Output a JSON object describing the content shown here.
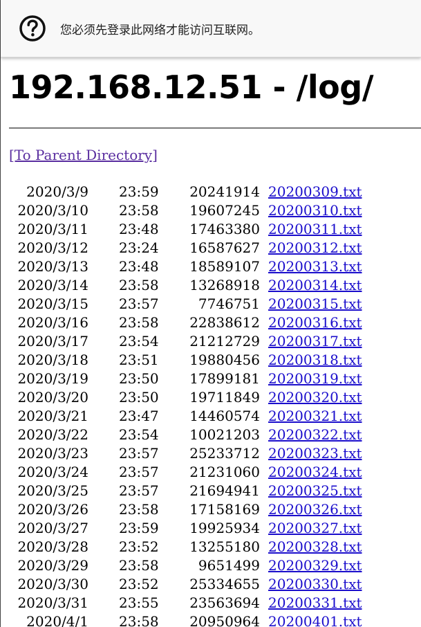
{
  "banner": {
    "message": "您必须先登录此网络才能访问互联网。"
  },
  "page": {
    "title": "192.168.12.51 - /log/",
    "parent_link": "[To Parent Directory]"
  },
  "files": [
    {
      "date": "2020/3/9",
      "time": "23:59",
      "size": "20241914",
      "name": "20200309.txt"
    },
    {
      "date": "2020/3/10",
      "time": "23:58",
      "size": "19607245",
      "name": "20200310.txt"
    },
    {
      "date": "2020/3/11",
      "time": "23:48",
      "size": "17463380",
      "name": "20200311.txt"
    },
    {
      "date": "2020/3/12",
      "time": "23:24",
      "size": "16587627",
      "name": "20200312.txt"
    },
    {
      "date": "2020/3/13",
      "time": "23:48",
      "size": "18589107",
      "name": "20200313.txt"
    },
    {
      "date": "2020/3/14",
      "time": "23:58",
      "size": "13268918",
      "name": "20200314.txt"
    },
    {
      "date": "2020/3/15",
      "time": "23:57",
      "size": "7746751",
      "name": "20200315.txt"
    },
    {
      "date": "2020/3/16",
      "time": "23:58",
      "size": "22838612",
      "name": "20200316.txt"
    },
    {
      "date": "2020/3/17",
      "time": "23:54",
      "size": "21212729",
      "name": "20200317.txt"
    },
    {
      "date": "2020/3/18",
      "time": "23:51",
      "size": "19880456",
      "name": "20200318.txt"
    },
    {
      "date": "2020/3/19",
      "time": "23:50",
      "size": "17899181",
      "name": "20200319.txt"
    },
    {
      "date": "2020/3/20",
      "time": "23:50",
      "size": "19711849",
      "name": "20200320.txt"
    },
    {
      "date": "2020/3/21",
      "time": "23:47",
      "size": "14460574",
      "name": "20200321.txt"
    },
    {
      "date": "2020/3/22",
      "time": "23:54",
      "size": "10021203",
      "name": "20200322.txt"
    },
    {
      "date": "2020/3/23",
      "time": "23:57",
      "size": "25233712",
      "name": "20200323.txt"
    },
    {
      "date": "2020/3/24",
      "time": "23:57",
      "size": "21231060",
      "name": "20200324.txt"
    },
    {
      "date": "2020/3/25",
      "time": "23:57",
      "size": "21694941",
      "name": "20200325.txt"
    },
    {
      "date": "2020/3/26",
      "time": "23:58",
      "size": "17158169",
      "name": "20200326.txt"
    },
    {
      "date": "2020/3/27",
      "time": "23:59",
      "size": "19925934",
      "name": "20200327.txt"
    },
    {
      "date": "2020/3/28",
      "time": "23:52",
      "size": "13255180",
      "name": "20200328.txt"
    },
    {
      "date": "2020/3/29",
      "time": "23:58",
      "size": "9651499",
      "name": "20200329.txt"
    },
    {
      "date": "2020/3/30",
      "time": "23:52",
      "size": "25334655",
      "name": "20200330.txt"
    },
    {
      "date": "2020/3/31",
      "time": "23:55",
      "size": "23563694",
      "name": "20200331.txt"
    },
    {
      "date": "2020/4/1",
      "time": "23:58",
      "size": "20950964",
      "name": "20200401.txt"
    }
  ]
}
